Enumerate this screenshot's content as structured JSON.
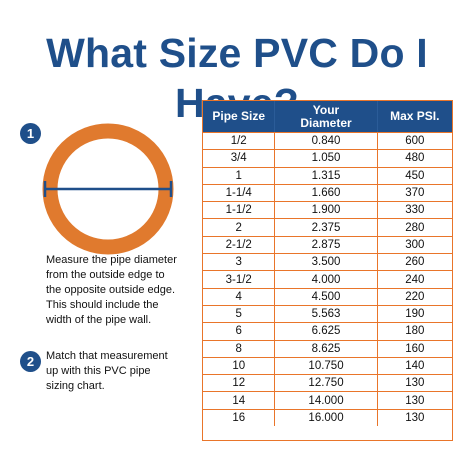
{
  "title": "What Size PVC Do I Have?",
  "colors": {
    "brand_blue": "#1f4f8a",
    "pipe_orange": "#e07a2e",
    "table_border": "#e9752a"
  },
  "steps": [
    {
      "number": "1",
      "text": "Measure the pipe diameter\nfrom the outside edge to\nthe opposite outside edge.\nThis  should include the\nwidth of the pipe wall."
    },
    {
      "number": "2",
      "text": "Match that measurement\nup with this PVC pipe\nsizing chart."
    }
  ],
  "table": {
    "headers": [
      "Pipe Size",
      "Your\nDiameter",
      "Max PSI."
    ],
    "rows": [
      [
        "1/2",
        "0.840",
        "600"
      ],
      [
        "3/4",
        "1.050",
        "480"
      ],
      [
        "1",
        "1.315",
        "450"
      ],
      [
        "1-1/4",
        "1.660",
        "370"
      ],
      [
        "1-1/2",
        "1.900",
        "330"
      ],
      [
        "2",
        "2.375",
        "280"
      ],
      [
        "2-1/2",
        "2.875",
        "300"
      ],
      [
        "3",
        "3.500",
        "260"
      ],
      [
        "3-1/2",
        "4.000",
        "240"
      ],
      [
        "4",
        "4.500",
        "220"
      ],
      [
        "5",
        "5.563",
        "190"
      ],
      [
        "6",
        "6.625",
        "180"
      ],
      [
        "8",
        "8.625",
        "160"
      ],
      [
        "10",
        "10.750",
        "140"
      ],
      [
        "12",
        "12.750",
        "130"
      ],
      [
        "14",
        "14.000",
        "130"
      ],
      [
        "16",
        "16.000",
        "130"
      ]
    ]
  }
}
